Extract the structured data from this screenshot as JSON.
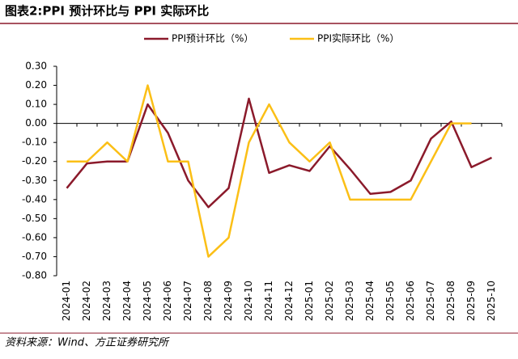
{
  "chart_data": {
    "type": "line",
    "title": "图表2:PPI 预计环比与 PPI 实际环比",
    "source": "资料来源：Wind、方正证券研究所",
    "categories": [
      "2024-01",
      "2024-02",
      "2024-03",
      "2024-04",
      "2024-05",
      "2024-06",
      "2024-07",
      "2024-08",
      "2024-09",
      "2024-10",
      "2024-11",
      "2024-12",
      "2025-01",
      "2025-02",
      "2025-03",
      "2025-04",
      "2025-05",
      "2025-06",
      "2025-07",
      "2025-08",
      "2025-09",
      "2025-10"
    ],
    "series": [
      {
        "name": "PPI预计环比（%）",
        "color": "#8b1a2b",
        "values": [
          -0.34,
          -0.21,
          -0.2,
          -0.2,
          0.1,
          -0.05,
          -0.3,
          -0.44,
          -0.34,
          0.13,
          -0.26,
          -0.22,
          -0.25,
          -0.12,
          -0.24,
          -0.37,
          -0.36,
          -0.3,
          -0.08,
          0.01,
          -0.23,
          -0.18
        ]
      },
      {
        "name": "PPI实际环比（%）",
        "color": "#fbbf16",
        "values": [
          -0.2,
          -0.2,
          -0.1,
          -0.2,
          0.2,
          -0.2,
          -0.2,
          -0.7,
          -0.6,
          -0.1,
          0.1,
          -0.1,
          -0.2,
          -0.1,
          -0.4,
          -0.4,
          -0.4,
          -0.4,
          -0.2,
          0.0,
          0.0,
          null
        ]
      }
    ],
    "ylim": [
      -0.8,
      0.3
    ],
    "yticks": [
      {
        "value": 0.3,
        "label": "0.30"
      },
      {
        "value": 0.2,
        "label": "0.20"
      },
      {
        "value": 0.1,
        "label": "0.10"
      },
      {
        "value": 0,
        "label": "0.00"
      },
      {
        "value": -0.1,
        "label": "-0.10"
      },
      {
        "value": -0.2,
        "label": "-0.20"
      },
      {
        "value": -0.3,
        "label": "-0.30"
      },
      {
        "value": -0.4,
        "label": "-0.40"
      },
      {
        "value": -0.5,
        "label": "-0.50"
      },
      {
        "value": -0.6,
        "label": "-0.60"
      },
      {
        "value": -0.7,
        "label": "-0.70"
      },
      {
        "value": -0.8,
        "label": "-0.80"
      }
    ],
    "grid": false
  }
}
